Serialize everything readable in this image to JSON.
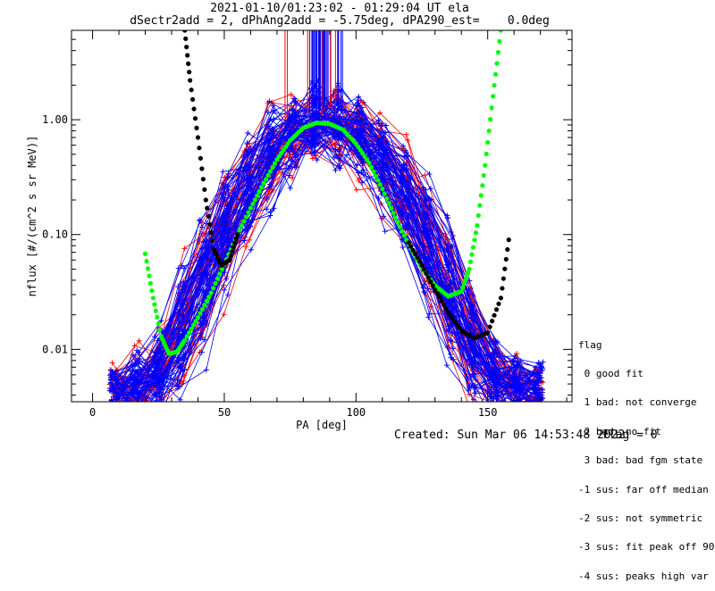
{
  "title_line1": "2021-01-10/01:23:02 - 01:29:04 UT ela",
  "title_line2": "dSectr2add = 2, dPhAng2add = -5.75deg, dPA290_est=    0.0deg",
  "footer_created": "Created: Sun Mar 06 14:53:48 2022",
  "footer_flag": "flag = 0",
  "legend": {
    "title": "flag",
    "items": [
      " 0 good fit",
      " 1 bad: not converge",
      " 2 bad: no fit",
      " 3 bad: bad fgm state",
      "-1 sus: far off median",
      "-2 sus: not symmetric",
      "-3 sus: fit peak off 90",
      "-4 sus: peaks high var"
    ]
  },
  "colors": {
    "axes": "#000000",
    "red": "#ff0000",
    "blue": "#0000ff",
    "green": "#00ff00",
    "black": "#000000"
  },
  "chart_data": {
    "type": "line",
    "xlabel": "PA [deg]",
    "ylabel": "nflux [#/(cm^2 s sr MeV)]",
    "xlim": [
      -8,
      182
    ],
    "ylim": [
      0.0035,
      6.0
    ],
    "yscale": "log",
    "xticks": [
      0,
      50,
      100,
      150
    ],
    "yticks": [
      {
        "v": 0.01,
        "label": "0.01"
      },
      {
        "v": 0.1,
        "label": "0.10"
      },
      {
        "v": 1.0,
        "label": "1.00"
      }
    ],
    "series": [
      {
        "color": "green",
        "marker": "dot",
        "x": [
          20,
          23,
          26,
          29,
          32,
          35,
          40,
          45,
          50,
          55,
          60,
          65,
          70,
          75,
          80,
          85,
          90,
          95,
          100,
          105,
          110,
          115,
          120,
          125,
          130,
          135,
          140,
          143,
          146,
          149,
          152,
          155
        ],
        "y": [
          0.068,
          0.028,
          0.013,
          0.0092,
          0.0095,
          0.012,
          0.019,
          0.031,
          0.055,
          0.1,
          0.17,
          0.28,
          0.45,
          0.66,
          0.85,
          0.94,
          0.92,
          0.82,
          0.62,
          0.42,
          0.25,
          0.14,
          0.082,
          0.051,
          0.036,
          0.029,
          0.032,
          0.05,
          0.12,
          0.4,
          1.6,
          6.0
        ]
      },
      {
        "color": "black",
        "marker": "dot",
        "x": [
          35,
          37,
          40,
          43,
          46,
          49,
          52,
          55
        ],
        "y": [
          6.0,
          2.2,
          0.7,
          0.2,
          0.075,
          0.054,
          0.06,
          0.1
        ]
      },
      {
        "color": "black",
        "marker": "dot",
        "x": [
          120,
          125,
          130,
          135,
          140,
          145,
          150,
          155,
          158
        ],
        "y": [
          0.085,
          0.054,
          0.033,
          0.021,
          0.0145,
          0.0125,
          0.014,
          0.028,
          0.09
        ]
      }
    ]
  }
}
